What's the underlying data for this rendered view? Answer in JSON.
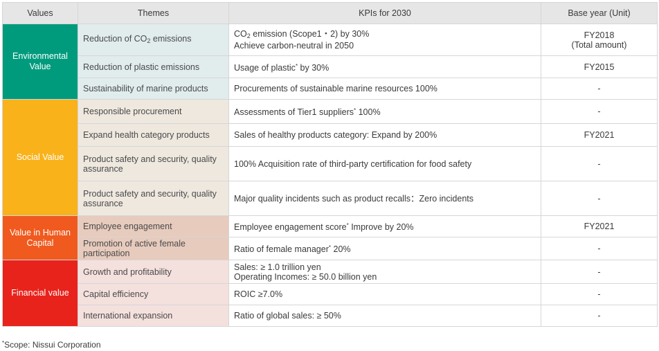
{
  "headers": [
    "Values",
    "Themes",
    "KPIs for 2030",
    "Base year (Unit)"
  ],
  "groups": [
    {
      "value": "Environmental Value",
      "value_color": "#009b7d",
      "theme_bg": "#e1eced",
      "rows": [
        {
          "theme": "Reduction of CO₂ emissions",
          "kpi": "CO₂ emission (Scope1・2) by 30%\nAchieve carbon-neutral in 2050",
          "base": "FY2018\n(Total amount)"
        },
        {
          "theme": "Reduction of plastic emissions",
          "kpi": "Usage of plastic* by 30%",
          "base": "FY2015"
        },
        {
          "theme": "Sustainability of marine products",
          "kpi": "Procurements of sustainable marine resources 100%",
          "base": "-"
        }
      ]
    },
    {
      "value": "Social Value",
      "value_color": "#f9b21a",
      "theme_bg": "#eee8df",
      "rows": [
        {
          "theme": "Responsible procurement",
          "kpi": "Assessments of Tier1 suppliers* 100%",
          "base": "-"
        },
        {
          "theme": "Expand health category products",
          "kpi": "Sales of healthy products category: Expand by 200%",
          "base": "FY2021"
        },
        {
          "theme": "Product safety and security, quality assurance",
          "kpi": "100% Acquisition rate of third-party certification for food safety",
          "base": "-"
        },
        {
          "theme": "Product safety and security, quality assurance",
          "kpi": "Major quality incidents such as product recalls：Zero incidents",
          "base": "-"
        }
      ]
    },
    {
      "value": "Value in Human Capital",
      "value_color": "#f05a1e",
      "theme_bg": "#e7cbbd",
      "rows": [
        {
          "theme": "Employee engagement",
          "kpi": "Employee engagement score* Improve by 20%",
          "base": "FY2021"
        },
        {
          "theme": "Promotion of active female participation",
          "kpi": "Ratio of female manager* 20%",
          "base": "-"
        }
      ]
    },
    {
      "value": "Financial value",
      "value_color": "#e8231c",
      "theme_bg": "#f4e1de",
      "rows": [
        {
          "theme": "Growth and profitability",
          "kpi": "Sales: ≥ 1.0 trillion yen\nOperating Incomes: ≥ 50.0 billion yen",
          "base": "-"
        },
        {
          "theme": "Capital efficiency",
          "kpi": "ROIC ≥7.0%",
          "base": "-"
        },
        {
          "theme": "International expansion",
          "kpi": "Ratio of global sales: ≥ 50%",
          "base": "-"
        }
      ]
    }
  ],
  "footnote": "*Scope: Nissui Corporation"
}
